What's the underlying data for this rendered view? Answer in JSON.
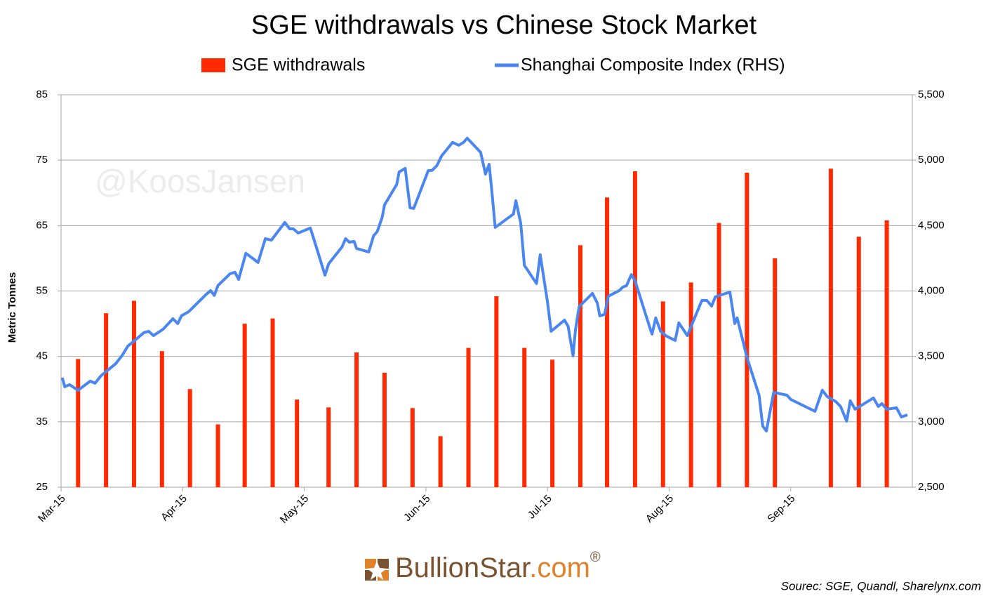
{
  "chart_data": {
    "type": "bar-line",
    "title": "SGE withdrawals vs Chinese Stock Market",
    "y_label": "Metric Tonnes",
    "watermark": "@KoosJansen",
    "logo": {
      "name": "BullionStar",
      "domain": ".com",
      "mark": "®"
    },
    "source": "Sourec: SGE, Quandl, Sharelynx.com",
    "xlim": [
      0,
      7
    ],
    "xticks": [
      {
        "value": 0,
        "label": "Mar-15"
      },
      {
        "value": 1,
        "label": "Apr-15"
      },
      {
        "value": 2,
        "label": "May-15"
      },
      {
        "value": 3,
        "label": "Jun-15"
      },
      {
        "value": 4,
        "label": "Jul-15"
      },
      {
        "value": 5,
        "label": "Aug-15"
      },
      {
        "value": 6,
        "label": "Sep-15"
      }
    ],
    "ylim": [
      25,
      85
    ],
    "yticks": [
      25,
      35,
      45,
      55,
      65,
      75,
      85
    ],
    "y2lim": [
      2500,
      5500
    ],
    "y2ticks": [
      {
        "value": 2500,
        "label": "2,500"
      },
      {
        "value": 3000,
        "label": "3,000"
      },
      {
        "value": 3500,
        "label": "3,500"
      },
      {
        "value": 4000,
        "label": "4,000"
      },
      {
        "value": 4500,
        "label": "4,500"
      },
      {
        "value": 5000,
        "label": "5,000"
      },
      {
        "value": 5500,
        "label": "5,500"
      }
    ],
    "grid": true,
    "series": [
      {
        "name": "SGE withdrawals",
        "type": "bar",
        "color": "#ff2a00",
        "x": [
          0.14,
          0.37,
          0.6,
          0.83,
          1.06,
          1.29,
          1.51,
          1.74,
          1.94,
          2.2,
          2.43,
          2.66,
          2.89,
          3.12,
          3.35,
          3.58,
          3.81,
          4.04,
          4.27,
          4.49,
          4.72,
          4.95,
          5.18,
          5.41,
          5.64,
          5.87,
          6.33,
          6.56,
          6.79
        ],
        "values": [
          44.6,
          51.6,
          53.5,
          45.8,
          40.0,
          34.6,
          50.0,
          50.8,
          38.4,
          37.2,
          45.6,
          42.5,
          37.1,
          32.8,
          46.3,
          54.2,
          46.3,
          44.5,
          62.0,
          69.3,
          73.3,
          53.4,
          56.3,
          65.4,
          73.1,
          60.0,
          73.7,
          63.3,
          65.8
        ]
      },
      {
        "name": "Shanghai Composite Index (RHS)",
        "type": "line",
        "axis": "y2",
        "color": "#4a86f0",
        "x": [
          0.01,
          0.03,
          0.07,
          0.14,
          0.24,
          0.28,
          0.33,
          0.45,
          0.5,
          0.55,
          0.6,
          0.68,
          0.72,
          0.76,
          0.84,
          0.92,
          0.96,
          0.99,
          1.05,
          1.19,
          1.23,
          1.26,
          1.29,
          1.39,
          1.43,
          1.46,
          1.52,
          1.62,
          1.68,
          1.73,
          1.84,
          1.88,
          1.91,
          1.95,
          2.05,
          2.11,
          2.17,
          2.2,
          2.31,
          2.34,
          2.37,
          2.41,
          2.43,
          2.53,
          2.57,
          2.6,
          2.64,
          2.66,
          2.76,
          2.78,
          2.83,
          2.87,
          2.9,
          3.02,
          3.05,
          3.09,
          3.13,
          3.22,
          3.27,
          3.31,
          3.34,
          3.45,
          3.49,
          3.52,
          3.54,
          3.57,
          3.72,
          3.74,
          3.78,
          3.81,
          3.91,
          3.94,
          4.0,
          4.03,
          4.14,
          4.17,
          4.21,
          4.23,
          4.26,
          4.37,
          4.41,
          4.43,
          4.47,
          4.5,
          4.59,
          4.62,
          4.65,
          4.69,
          4.72,
          4.84,
          4.86,
          4.89,
          4.93,
          4.98,
          5.05,
          5.08,
          5.15,
          5.27,
          5.31,
          5.35,
          5.38,
          5.5,
          5.54,
          5.56,
          5.64,
          5.74,
          5.77,
          5.8,
          5.86,
          5.97,
          6.0,
          6.2,
          6.26,
          6.3,
          6.37,
          6.41,
          6.46,
          6.49,
          6.53,
          6.68,
          6.72,
          6.75,
          6.79,
          6.87,
          6.91,
          6.96
        ],
        "values": [
          3337,
          3268,
          3284,
          3241,
          3311,
          3295,
          3353,
          3445,
          3504,
          3579,
          3617,
          3681,
          3692,
          3659,
          3708,
          3788,
          3751,
          3810,
          3842,
          3971,
          4003,
          3966,
          4041,
          4132,
          4143,
          4089,
          4288,
          4218,
          4400,
          4389,
          4524,
          4475,
          4475,
          4443,
          4481,
          4304,
          4121,
          4207,
          4336,
          4400,
          4373,
          4379,
          4325,
          4298,
          4422,
          4454,
          4561,
          4658,
          4814,
          4910,
          4937,
          4636,
          4631,
          4921,
          4921,
          4958,
          5034,
          5136,
          5114,
          5136,
          5168,
          5060,
          4894,
          4969,
          4787,
          4486,
          4588,
          4690,
          4518,
          4196,
          4057,
          4277,
          3917,
          3692,
          3777,
          3729,
          3504,
          3702,
          3880,
          3982,
          3907,
          3810,
          3821,
          3960,
          4003,
          4030,
          4041,
          4126,
          4078,
          3724,
          3670,
          3794,
          3692,
          3654,
          3622,
          3756,
          3659,
          3928,
          3928,
          3885,
          3955,
          3992,
          3751,
          3794,
          3493,
          3203,
          2967,
          2929,
          3225,
          3203,
          3171,
          3080,
          3241,
          3193,
          3155,
          3117,
          3005,
          3160,
          3096,
          3182,
          3117,
          3139,
          3096,
          3107,
          3037,
          3053
        ]
      }
    ]
  }
}
